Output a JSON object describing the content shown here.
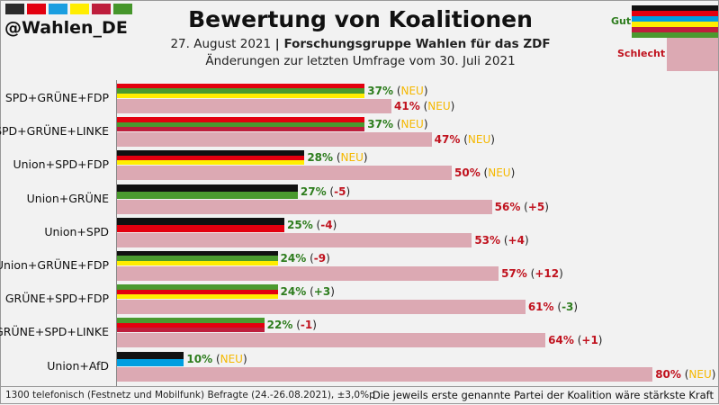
{
  "header": {
    "handle": "@Wahlen_DE",
    "title": "Bewertung von Koalitionen",
    "date": "27. August 2021",
    "separator": " | ",
    "institute": "Forschungsgruppe Wahlen für das ZDF",
    "subtitle": "Änderungen zur letzten Umfrage vom 30. Juli 2021"
  },
  "logo_colors": [
    "#2b2b2b",
    "#e3000f",
    "#1a9ee0",
    "#ffed00",
    "#be1e3c",
    "#46962b"
  ],
  "colors": {
    "Union": "#111111",
    "SPD": "#e3000f",
    "GRÜNE": "#4a9a2f",
    "FDP": "#ffed00",
    "LINKE": "#be1e3c",
    "AfD": "#009ee0",
    "bad": "#dca9b3",
    "good_text": "#2e7d1e",
    "bad_text": "#c0121e",
    "neu": "#f5b800"
  },
  "legend": {
    "good": "Gut",
    "bad": "Schlecht",
    "good_parties": [
      "Union",
      "SPD",
      "AfD",
      "FDP",
      "LINKE",
      "GRÜNE"
    ]
  },
  "chart_data": {
    "type": "bar",
    "orientation": "horizontal",
    "unit": "%",
    "xlim": [
      0,
      100
    ],
    "categories": [
      "SPD+GRÜNE+FDP",
      "SPD+GRÜNE+LINKE",
      "Union+SPD+FDP",
      "Union+GRÜNE",
      "Union+SPD",
      "Union+GRÜNE+FDP",
      "GRÜNE+SPD+FDP",
      "GRÜNE+SPD+LINKE",
      "Union+AfD"
    ],
    "parties": [
      [
        "SPD",
        "GRÜNE",
        "FDP"
      ],
      [
        "SPD",
        "GRÜNE",
        "LINKE"
      ],
      [
        "Union",
        "SPD",
        "FDP"
      ],
      [
        "Union",
        "GRÜNE"
      ],
      [
        "Union",
        "SPD"
      ],
      [
        "Union",
        "GRÜNE",
        "FDP"
      ],
      [
        "GRÜNE",
        "SPD",
        "FDP"
      ],
      [
        "GRÜNE",
        "SPD",
        "LINKE"
      ],
      [
        "Union",
        "AfD"
      ]
    ],
    "series": [
      {
        "name": "Gut",
        "values": [
          37,
          37,
          28,
          27,
          25,
          24,
          24,
          22,
          10
        ],
        "changes": [
          "NEU",
          "NEU",
          "NEU",
          "-5",
          "-4",
          "-9",
          "+3",
          "-1",
          "NEU"
        ]
      },
      {
        "name": "Schlecht",
        "values": [
          41,
          47,
          50,
          56,
          53,
          57,
          61,
          64,
          80
        ],
        "changes": [
          "NEU",
          "NEU",
          "NEU",
          "+5",
          "+4",
          "+12",
          "-3",
          "+1",
          "NEU"
        ]
      }
    ]
  },
  "footer": {
    "left": "1300 telefonisch (Festnetz und Mobilfunk) Befragte (24.-26.08.2021), ±3,0%p",
    "right": "Die jeweils erste genannte Partei der Koalition wäre stärkste Kraft"
  }
}
